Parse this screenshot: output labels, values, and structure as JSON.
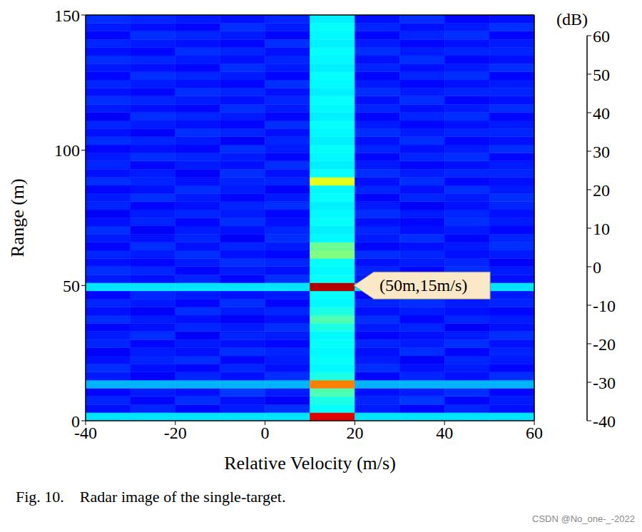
{
  "chart_data": {
    "type": "heatmap",
    "xlabel": "Relative Velocity (m/s)",
    "ylabel": "Range (m)",
    "xlim": [
      -40,
      60
    ],
    "xticks": [
      -40,
      -20,
      0,
      20,
      40,
      60
    ],
    "ylim": [
      0,
      150
    ],
    "yticks": [
      0,
      50,
      100,
      150
    ],
    "colorbar": {
      "label": "(dB)",
      "range": [
        -40,
        60
      ],
      "ticks": [
        -40,
        -30,
        -20,
        -10,
        0,
        10,
        20,
        30,
        40,
        50,
        60
      ]
    },
    "annotations": [
      {
        "text": "(50m,15m/s)",
        "x": 15,
        "y": 50
      }
    ],
    "caption": "Fig. 10.    Radar image of the single-target.",
    "watermark": "CSDN @No_one-_-2022",
    "heatmap": {
      "x_edges": [
        -40,
        -30,
        -20,
        -10,
        0,
        10,
        20,
        30,
        40,
        50,
        60
      ],
      "y_edges": [
        0,
        3,
        6,
        9,
        12,
        15,
        18,
        21,
        24,
        27,
        30,
        33,
        36,
        39,
        42,
        45,
        48,
        51,
        54,
        57,
        60,
        63,
        66,
        69,
        72,
        75,
        78,
        81,
        84,
        87,
        90,
        93,
        96,
        99,
        102,
        105,
        108,
        111,
        114,
        117,
        120,
        123,
        126,
        129,
        132,
        135,
        138,
        141,
        144,
        147,
        150
      ],
      "values": [
        [
          -5,
          -5,
          -5,
          -5,
          -5,
          50,
          -5,
          -5,
          -5,
          -5
        ],
        [
          -26,
          -24,
          -27,
          -25,
          -23,
          -2,
          -25,
          -27,
          -24,
          -26
        ],
        [
          -24,
          -27,
          -23,
          -26,
          -28,
          0,
          -24,
          -22,
          -27,
          -25
        ],
        [
          -27,
          -25,
          -26,
          -22,
          -25,
          5,
          -26,
          -25,
          -23,
          -27
        ],
        [
          -10,
          -10,
          -10,
          -10,
          -10,
          35,
          -10,
          -10,
          -10,
          -10
        ],
        [
          -25,
          -28,
          -24,
          -26,
          -23,
          0,
          -27,
          -24,
          -26,
          -23
        ],
        [
          -23,
          -26,
          -27,
          -24,
          -26,
          -3,
          -23,
          -26,
          -25,
          -27
        ],
        [
          -26,
          -24,
          -23,
          -27,
          -25,
          -2,
          -25,
          -28,
          -24,
          -25
        ],
        [
          -28,
          -25,
          -26,
          -23,
          -24,
          -3,
          -26,
          -23,
          -27,
          -24
        ],
        [
          -24,
          -27,
          -25,
          -26,
          -27,
          -2,
          -24,
          -25,
          -23,
          -26
        ],
        [
          -25,
          -23,
          -28,
          -24,
          -25,
          -3,
          -27,
          -26,
          -25,
          -23
        ],
        [
          -27,
          -26,
          -24,
          -25,
          -23,
          0,
          -25,
          -24,
          -28,
          -26
        ],
        [
          -23,
          -25,
          -26,
          -28,
          -26,
          5,
          -23,
          -27,
          -24,
          -25
        ],
        [
          -26,
          -28,
          -23,
          -25,
          -24,
          0,
          -26,
          -25,
          -26,
          -27
        ],
        [
          -24,
          -25,
          -27,
          -23,
          -27,
          -3,
          -24,
          -23,
          -25,
          -24
        ],
        [
          -27,
          -24,
          -25,
          -26,
          -25,
          -2,
          -27,
          -26,
          -24,
          -25
        ],
        [
          -5,
          -5,
          -5,
          -5,
          -5,
          55,
          -5,
          -5,
          -5,
          -5
        ],
        [
          -25,
          -26,
          -24,
          -27,
          -23,
          -2,
          -25,
          -24,
          -27,
          -26
        ],
        [
          -23,
          -24,
          -27,
          -25,
          -26,
          -3,
          -24,
          -27,
          -23,
          -25
        ],
        [
          -26,
          -27,
          -25,
          -23,
          -24,
          -2,
          -26,
          -25,
          -24,
          -28
        ],
        [
          -24,
          -25,
          -23,
          -26,
          -27,
          10,
          -23,
          -24,
          -26,
          -25
        ],
        [
          -27,
          -23,
          -26,
          -24,
          -25,
          8,
          -27,
          -26,
          -25,
          -23
        ],
        [
          -25,
          -26,
          -24,
          -28,
          -23,
          -3,
          -25,
          -23,
          -27,
          -24
        ],
        [
          -23,
          -28,
          -25,
          -26,
          -24,
          -4,
          -24,
          -26,
          -25,
          -27
        ],
        [
          -26,
          -24,
          -27,
          -23,
          -26,
          -2,
          -26,
          -27,
          -23,
          -25
        ],
        [
          -28,
          -25,
          -24,
          -25,
          -27,
          -3,
          -23,
          -25,
          -24,
          -26
        ],
        [
          -24,
          -27,
          -26,
          -24,
          -23,
          -4,
          -25,
          -28,
          -26,
          -24
        ],
        [
          -25,
          -23,
          -25,
          -27,
          -25,
          -2,
          -27,
          -24,
          -25,
          -23
        ],
        [
          -27,
          -26,
          -23,
          -25,
          -28,
          -3,
          -24,
          -26,
          -23,
          -25
        ],
        [
          -23,
          -24,
          -26,
          -24,
          -24,
          20,
          -26,
          -23,
          -27,
          -26
        ],
        [
          -26,
          -25,
          -28,
          -23,
          -26,
          -2,
          -23,
          -25,
          -24,
          -24
        ],
        [
          -24,
          -27,
          -25,
          -26,
          -23,
          -4,
          -25,
          -27,
          -26,
          -25
        ],
        [
          -25,
          -23,
          -24,
          -25,
          -27,
          -3,
          -27,
          -24,
          -23,
          -27
        ],
        [
          -27,
          -26,
          -27,
          -23,
          -25,
          -2,
          -24,
          -26,
          -25,
          -23
        ],
        [
          -23,
          -24,
          -25,
          -28,
          -24,
          -4,
          -26,
          -23,
          -27,
          -26
        ],
        [
          -26,
          -28,
          -23,
          -24,
          -26,
          -3,
          -23,
          -25,
          -24,
          -24
        ],
        [
          -24,
          -25,
          -26,
          -27,
          -23,
          -2,
          -25,
          -27,
          -26,
          -25
        ],
        [
          -28,
          -23,
          -24,
          -25,
          -27,
          -4,
          -27,
          -24,
          -23,
          -27
        ],
        [
          -25,
          -26,
          -27,
          -23,
          -25,
          -3,
          -24,
          -26,
          -25,
          -23
        ],
        [
          -23,
          -24,
          -25,
          -26,
          -24,
          -2,
          -26,
          -23,
          -27,
          -26
        ],
        [
          -26,
          -27,
          -23,
          -24,
          -26,
          -4,
          -23,
          -25,
          -24,
          -24
        ],
        [
          -24,
          -25,
          -26,
          -27,
          -23,
          -3,
          -25,
          -27,
          -26,
          -25
        ],
        [
          -27,
          -23,
          -24,
          -25,
          -27,
          -2,
          -27,
          -24,
          -23,
          -27
        ],
        [
          -25,
          -26,
          -27,
          -23,
          -25,
          -4,
          -24,
          -26,
          -25,
          -23
        ],
        [
          -23,
          -24,
          -25,
          -26,
          -24,
          -3,
          -26,
          -23,
          -27,
          -26
        ],
        [
          -26,
          -27,
          -23,
          -24,
          -26,
          -2,
          -23,
          -25,
          -24,
          -24
        ],
        [
          -24,
          -25,
          -26,
          -27,
          -23,
          -4,
          -25,
          -27,
          -26,
          -25
        ],
        [
          -27,
          -23,
          -24,
          -25,
          -27,
          -3,
          -27,
          -24,
          -23,
          -27
        ],
        [
          -25,
          -26,
          -27,
          -23,
          -25,
          -2,
          -24,
          -26,
          -25,
          -23
        ],
        [
          -23,
          -24,
          -25,
          -26,
          -24,
          -4,
          -26,
          -23,
          -27,
          -26
        ]
      ]
    }
  }
}
